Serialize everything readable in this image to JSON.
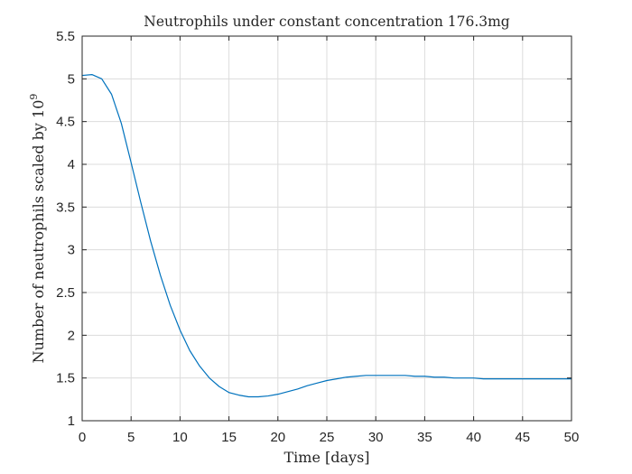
{
  "chart_data": {
    "type": "line",
    "title": "Neutrophils under constant concentration 176.3mg",
    "xlabel": "Time [days]",
    "ylabel": "Number of neutrophils scaled by 10",
    "ylabel_superscript": "9",
    "xlim": [
      0,
      50
    ],
    "ylim": [
      1,
      5.5
    ],
    "xticks": [
      0,
      5,
      10,
      15,
      20,
      25,
      30,
      35,
      40,
      45,
      50
    ],
    "yticks": [
      1,
      1.5,
      2,
      2.5,
      3,
      3.5,
      4,
      4.5,
      5,
      5.5
    ],
    "xtick_labels": [
      "0",
      "5",
      "10",
      "15",
      "20",
      "25",
      "30",
      "35",
      "40",
      "45",
      "50"
    ],
    "ytick_labels": [
      "1",
      "1.5",
      "2",
      "2.5",
      "3",
      "3.5",
      "4",
      "4.5",
      "5",
      "5.5"
    ],
    "grid": true,
    "line_color": "#0072BD",
    "grid_color": "#dcdcdc",
    "axis_color": "#262626",
    "series": [
      {
        "x": [
          0,
          1,
          2,
          3,
          4,
          5,
          6,
          7,
          8,
          9,
          10,
          11,
          12,
          13,
          14,
          15,
          16,
          17,
          18,
          19,
          20,
          21,
          22,
          23,
          24,
          25,
          26,
          27,
          28,
          29,
          30,
          31,
          32,
          33,
          34,
          35,
          36,
          37,
          38,
          39,
          40,
          41,
          42,
          43,
          44,
          45,
          46,
          47,
          48,
          49,
          50
        ],
        "y": [
          5.04,
          5.05,
          5.0,
          4.82,
          4.48,
          4.02,
          3.55,
          3.1,
          2.7,
          2.35,
          2.06,
          1.82,
          1.64,
          1.5,
          1.4,
          1.33,
          1.3,
          1.28,
          1.28,
          1.29,
          1.31,
          1.34,
          1.37,
          1.41,
          1.44,
          1.47,
          1.49,
          1.51,
          1.52,
          1.53,
          1.53,
          1.53,
          1.53,
          1.53,
          1.52,
          1.52,
          1.51,
          1.51,
          1.5,
          1.5,
          1.5,
          1.49,
          1.49,
          1.49,
          1.49,
          1.49,
          1.49,
          1.49,
          1.49,
          1.49,
          1.49
        ]
      }
    ]
  }
}
